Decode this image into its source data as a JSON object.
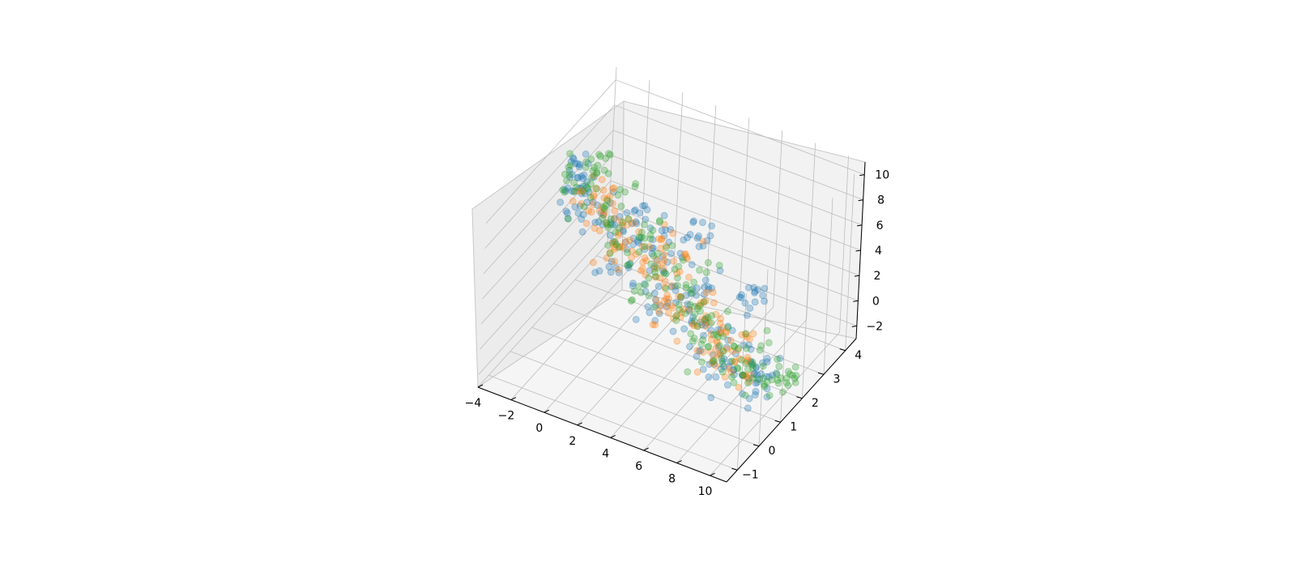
{
  "chart_data": {
    "type": "scatter",
    "projection": "3d",
    "title": "",
    "xlabel": "",
    "ylabel": "",
    "zlabel": "",
    "grid": true,
    "legend": "none",
    "xlim": [
      -4,
      11
    ],
    "ylim": [
      -1.5,
      4.5
    ],
    "zlim": [
      -3,
      11
    ],
    "x_ticks": [
      -4,
      -2,
      0,
      2,
      4,
      6,
      8,
      10
    ],
    "x_tick_labels": [
      "−4",
      "−2",
      "0",
      "2",
      "4",
      "6",
      "8",
      "10"
    ],
    "y_ticks": [
      -1,
      0,
      1,
      2,
      3,
      4
    ],
    "y_tick_labels": [
      "−1",
      "0",
      "1",
      "2",
      "3",
      "4"
    ],
    "z_ticks": [
      -2,
      0,
      2,
      4,
      6,
      8,
      10
    ],
    "z_tick_labels": [
      "−2",
      "0",
      "2",
      "4",
      "6",
      "8",
      "10"
    ],
    "series_colors": [
      "#1f77b4",
      "#ff7f0e",
      "#2ca02c"
    ],
    "point_alpha": 0.3,
    "series": [
      {
        "points": [
          [
            -2.6,
            1.3,
            9.6
          ],
          [
            -2.2,
            1.0,
            9.8
          ],
          [
            -1.8,
            0.8,
            9.3
          ],
          [
            -1.4,
            1.2,
            9.0
          ],
          [
            -1.0,
            0.9,
            8.6
          ],
          [
            -2.4,
            1.6,
            9.4
          ],
          [
            -1.9,
            1.4,
            9.1
          ],
          [
            -1.2,
            0.5,
            8.9
          ],
          [
            -0.6,
            1.1,
            8.2
          ],
          [
            -0.2,
            0.7,
            7.8
          ],
          [
            0.3,
            1.2,
            7.4
          ],
          [
            0.6,
            0.8,
            7.0
          ],
          [
            1.0,
            1.5,
            6.8
          ],
          [
            1.3,
            1.0,
            6.4
          ],
          [
            1.7,
            1.3,
            6.0
          ],
          [
            2.0,
            0.6,
            5.7
          ],
          [
            2.4,
            1.4,
            5.3
          ],
          [
            2.8,
            1.0,
            4.9
          ],
          [
            3.1,
            1.6,
            4.6
          ],
          [
            3.5,
            0.9,
            4.2
          ],
          [
            3.9,
            1.2,
            3.8
          ],
          [
            4.3,
            0.7,
            3.4
          ],
          [
            4.7,
            1.5,
            3.1
          ],
          [
            5.1,
            1.1,
            2.8
          ],
          [
            5.5,
            0.6,
            2.4
          ],
          [
            5.9,
            1.3,
            2.1
          ],
          [
            6.3,
            0.9,
            1.7
          ],
          [
            6.7,
            1.4,
            1.4
          ],
          [
            7.1,
            1.0,
            1.0
          ],
          [
            7.5,
            0.5,
            0.8
          ],
          [
            7.9,
            1.2,
            0.5
          ],
          [
            8.3,
            0.8,
            0.2
          ],
          [
            8.7,
            1.3,
            0.0
          ],
          [
            9.1,
            0.9,
            -0.3
          ],
          [
            9.5,
            1.1,
            -0.5
          ],
          [
            9.8,
            0.7,
            -0.6
          ],
          [
            10.1,
            1.0,
            -0.8
          ],
          [
            3.0,
            2.6,
            4.6
          ],
          [
            3.3,
            2.9,
            4.3
          ],
          [
            3.6,
            2.7,
            4.0
          ],
          [
            6.5,
            2.5,
            2.0
          ],
          [
            6.9,
            2.8,
            1.8
          ],
          [
            7.2,
            2.6,
            1.6
          ],
          [
            1.5,
            0.2,
            6.5
          ],
          [
            4.0,
            0.1,
            3.9
          ],
          [
            8.0,
            0.2,
            0.6
          ],
          [
            0.8,
            1.8,
            7.2
          ],
          [
            5.0,
            1.9,
            3.0
          ],
          [
            2.2,
            2.0,
            5.9
          ],
          [
            9.3,
            1.6,
            -0.2
          ]
        ]
      },
      {
        "points": [
          [
            -1.6,
            1.1,
            8.8
          ],
          [
            -1.1,
            1.3,
            8.4
          ],
          [
            -0.7,
            0.9,
            8.0
          ],
          [
            -0.3,
            1.2,
            7.6
          ],
          [
            0.1,
            1.0,
            7.3
          ],
          [
            0.5,
            1.4,
            6.9
          ],
          [
            0.9,
            0.8,
            6.6
          ],
          [
            1.3,
            1.2,
            6.2
          ],
          [
            1.7,
            1.0,
            5.9
          ],
          [
            2.1,
            1.5,
            5.5
          ],
          [
            2.5,
            0.9,
            5.1
          ],
          [
            2.9,
            1.3,
            4.8
          ],
          [
            3.3,
            1.1,
            4.4
          ],
          [
            3.7,
            1.6,
            4.0
          ],
          [
            4.1,
            0.8,
            3.7
          ],
          [
            4.5,
            1.2,
            3.3
          ],
          [
            4.9,
            1.0,
            2.9
          ],
          [
            5.3,
            1.4,
            2.6
          ],
          [
            5.7,
            0.9,
            2.2
          ],
          [
            6.1,
            1.3,
            1.9
          ],
          [
            6.5,
            1.1,
            1.5
          ],
          [
            6.9,
            1.5,
            1.2
          ],
          [
            7.3,
            0.8,
            0.9
          ],
          [
            7.7,
            1.2,
            0.6
          ],
          [
            8.1,
            1.0,
            0.3
          ],
          [
            8.5,
            1.3,
            0.1
          ],
          [
            8.9,
            0.9,
            -0.2
          ],
          [
            2.3,
            1.9,
            5.4
          ],
          [
            3.6,
            2.1,
            4.3
          ],
          [
            5.4,
            2.0,
            2.6
          ],
          [
            4.2,
            0.4,
            3.5
          ],
          [
            6.8,
            0.5,
            1.4
          ],
          [
            1.0,
            0.5,
            6.4
          ],
          [
            7.6,
            1.7,
            0.9
          ],
          [
            -0.9,
            1.6,
            8.3
          ]
        ]
      },
      {
        "points": [
          [
            -1.3,
            1.7,
            10.6
          ],
          [
            -1.2,
            1.5,
            10.3
          ],
          [
            -1.1,
            1.4,
            10.0
          ],
          [
            -2.5,
            1.0,
            9.9
          ],
          [
            -2.0,
            0.6,
            9.5
          ],
          [
            -1.5,
            1.5,
            9.2
          ],
          [
            -0.9,
            0.7,
            8.7
          ],
          [
            -0.4,
            1.4,
            8.1
          ],
          [
            0.2,
            0.9,
            7.6
          ],
          [
            0.7,
            1.3,
            7.1
          ],
          [
            1.1,
            0.7,
            6.7
          ],
          [
            1.6,
            1.4,
            6.2
          ],
          [
            2.0,
            1.1,
            5.8
          ],
          [
            2.6,
            1.5,
            5.2
          ],
          [
            3.0,
            0.8,
            4.8
          ],
          [
            3.4,
            1.3,
            4.4
          ],
          [
            3.8,
            1.0,
            4.0
          ],
          [
            4.4,
            1.5,
            3.4
          ],
          [
            4.8,
            0.9,
            3.0
          ],
          [
            5.2,
            1.3,
            2.7
          ],
          [
            5.6,
            1.0,
            2.3
          ],
          [
            6.0,
            1.5,
            2.0
          ],
          [
            6.4,
            0.8,
            1.6
          ],
          [
            6.8,
            1.2,
            1.3
          ],
          [
            7.4,
            1.0,
            0.8
          ],
          [
            7.8,
            1.4,
            0.5
          ],
          [
            8.4,
            0.9,
            0.2
          ],
          [
            8.8,
            1.1,
            -0.1
          ],
          [
            9.2,
            0.8,
            -0.4
          ],
          [
            9.6,
            1.2,
            -0.6
          ],
          [
            10.0,
            1.3,
            -0.7
          ],
          [
            10.3,
            1.5,
            -0.8
          ],
          [
            10.5,
            1.6,
            -0.9
          ],
          [
            10.6,
            1.8,
            -1.0
          ],
          [
            1.8,
            2.2,
            6.0
          ],
          [
            4.6,
            2.3,
            3.2
          ],
          [
            3.2,
            0.3,
            4.7
          ],
          [
            7.0,
            0.3,
            1.1
          ],
          [
            -0.1,
            2.0,
            7.8
          ],
          [
            8.6,
            1.8,
            0.0
          ]
        ]
      }
    ]
  }
}
